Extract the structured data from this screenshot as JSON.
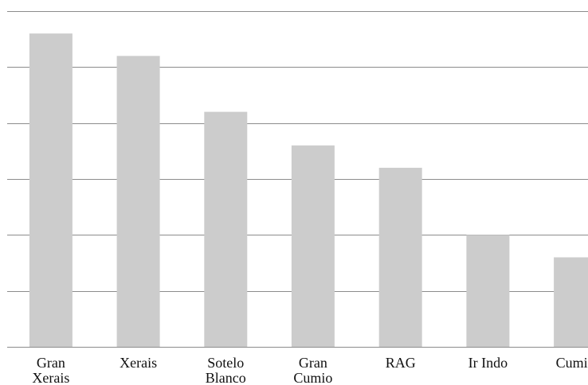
{
  "chart_data": {
    "type": "bar",
    "title": "",
    "xlabel": "",
    "ylabel": "",
    "categories": [
      [
        "Gran",
        "Xerais"
      ],
      [
        "Xerais"
      ],
      [
        "Sotelo",
        "Blanco"
      ],
      [
        "Gran",
        "Cumio"
      ],
      [
        "RAG"
      ],
      [
        "Ir Indo"
      ],
      [
        "Cumio"
      ]
    ],
    "values": [
      5.6,
      5.2,
      4.2,
      3.6,
      3.2,
      2.0,
      1.6
    ],
    "ylim": [
      0,
      6
    ],
    "yticks": [
      0,
      1,
      2,
      3,
      4,
      5,
      6
    ],
    "y_tick_labels_shown": false,
    "grid": true,
    "legend": "none",
    "colors": {
      "bar": "#cccccc",
      "grid": "#8c8c8c",
      "text": "#111111"
    }
  }
}
